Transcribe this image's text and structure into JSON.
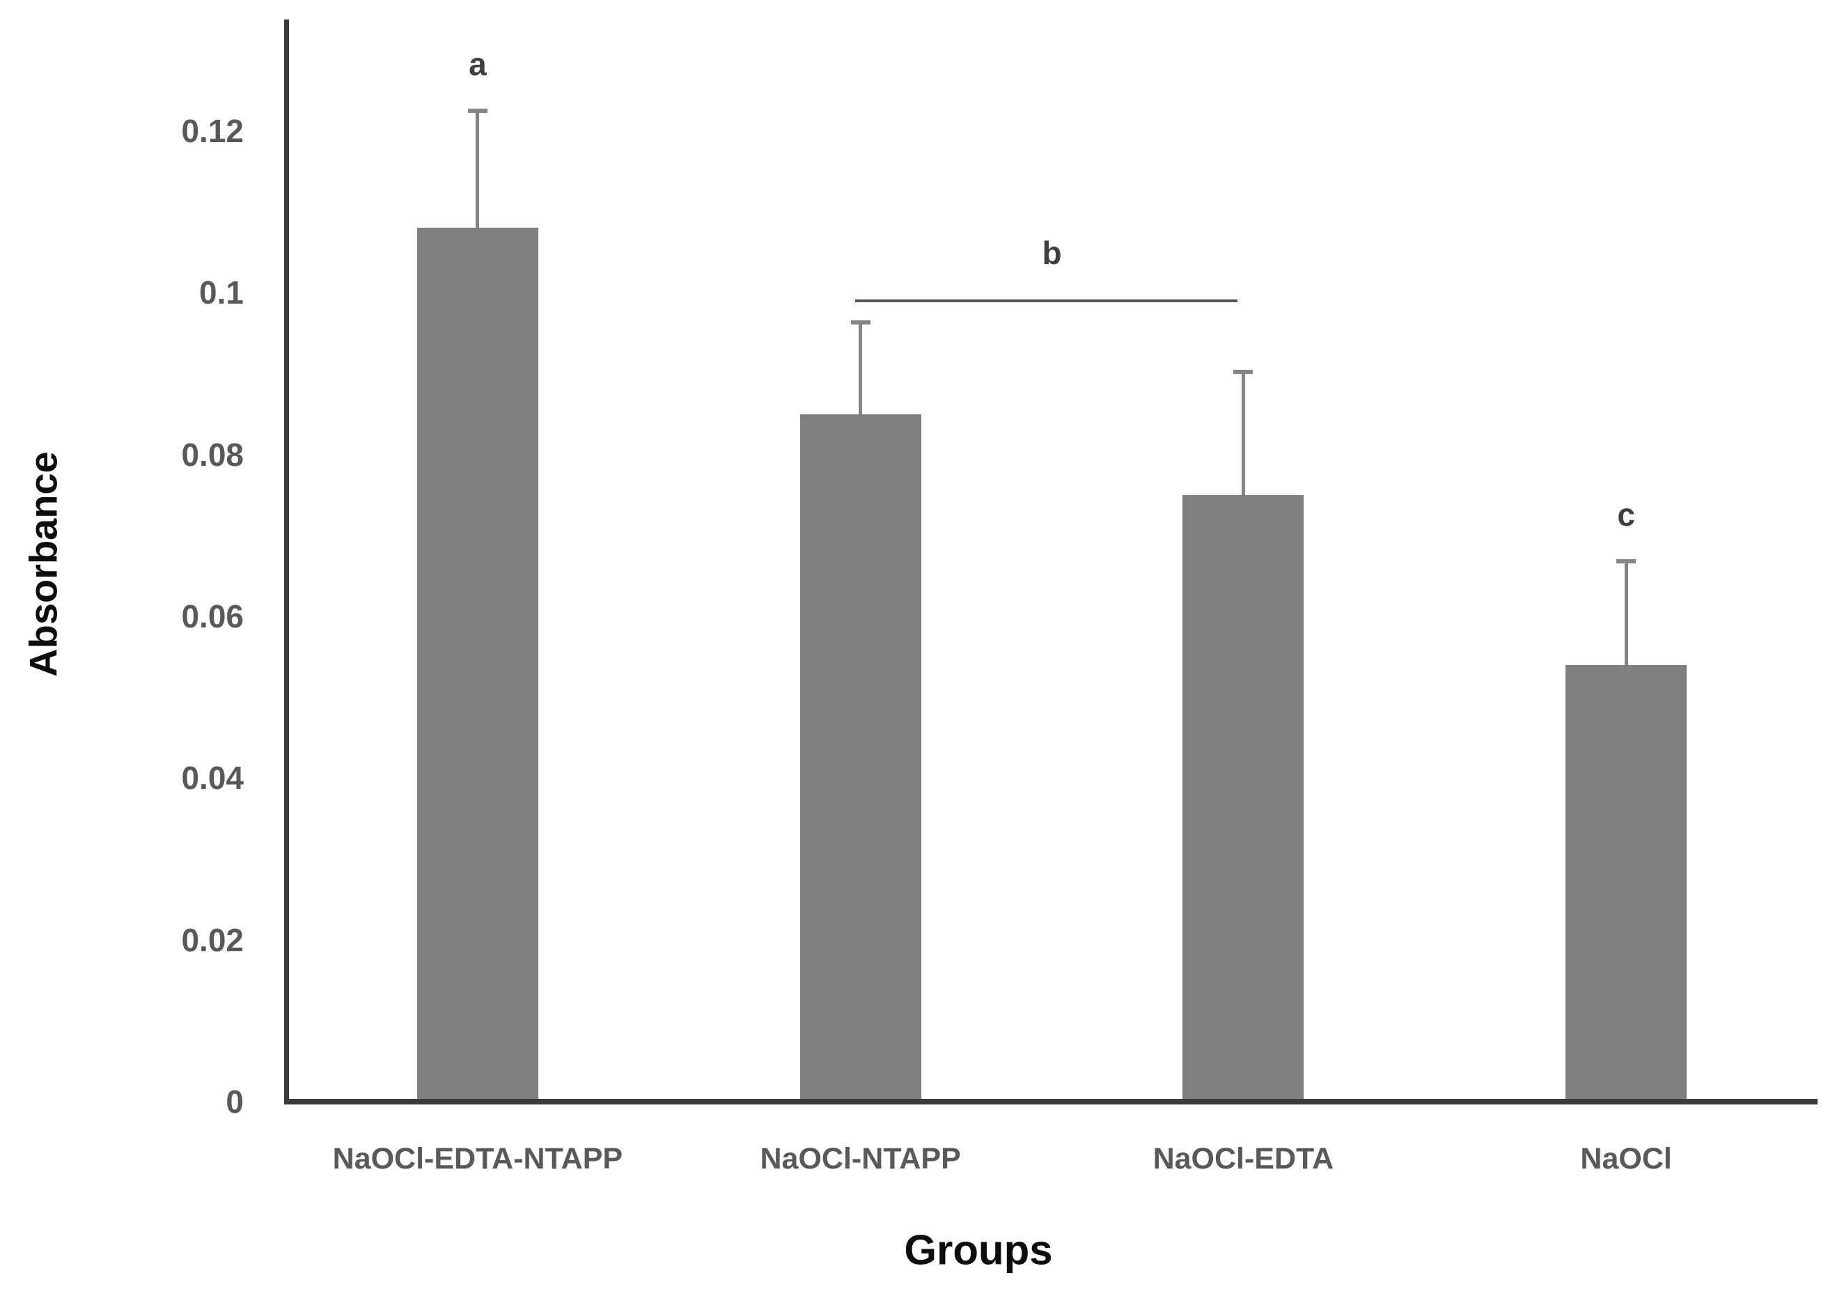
{
  "chart_data": {
    "type": "bar",
    "title": "",
    "xlabel": "Groups",
    "ylabel": "Absorbance",
    "categories": [
      "NaOCl-EDTA-NTAPP",
      "NaOCl-NTAPP",
      "NaOCl-EDTA",
      "NaOCl"
    ],
    "values": [
      0.108,
      0.085,
      0.075,
      0.054
    ],
    "errors_plus": [
      0.0145,
      0.0113,
      0.0152,
      0.0128
    ],
    "ylim": [
      0,
      0.132
    ],
    "yticks": [
      {
        "value": 0,
        "label": "0"
      },
      {
        "value": 0.02,
        "label": "0.02"
      },
      {
        "value": 0.04,
        "label": "0.04"
      },
      {
        "value": 0.06,
        "label": "0.06"
      },
      {
        "value": 0.08,
        "label": "0.08"
      },
      {
        "value": 0.1,
        "label": "0.1"
      },
      {
        "value": 0.12,
        "label": "0.12"
      }
    ],
    "grid": false,
    "legend": null,
    "annotations": {
      "letters": [
        {
          "text": "a",
          "bar_index": 0
        },
        {
          "text": "c",
          "bar_index": 3
        }
      ],
      "bracket": {
        "text": "b",
        "from_bar": 1,
        "to_bar": 2,
        "y_value": 0.099
      }
    }
  },
  "colors": {
    "bar": "#7f7f7f",
    "axis": "#3a3a3a",
    "tick_text": "#595959",
    "category_text": "#595959",
    "annotation_text": "#3f3f3f",
    "error_bar": "#848484",
    "bracket_line": "#555555",
    "title_text": "#0d0d0d"
  }
}
